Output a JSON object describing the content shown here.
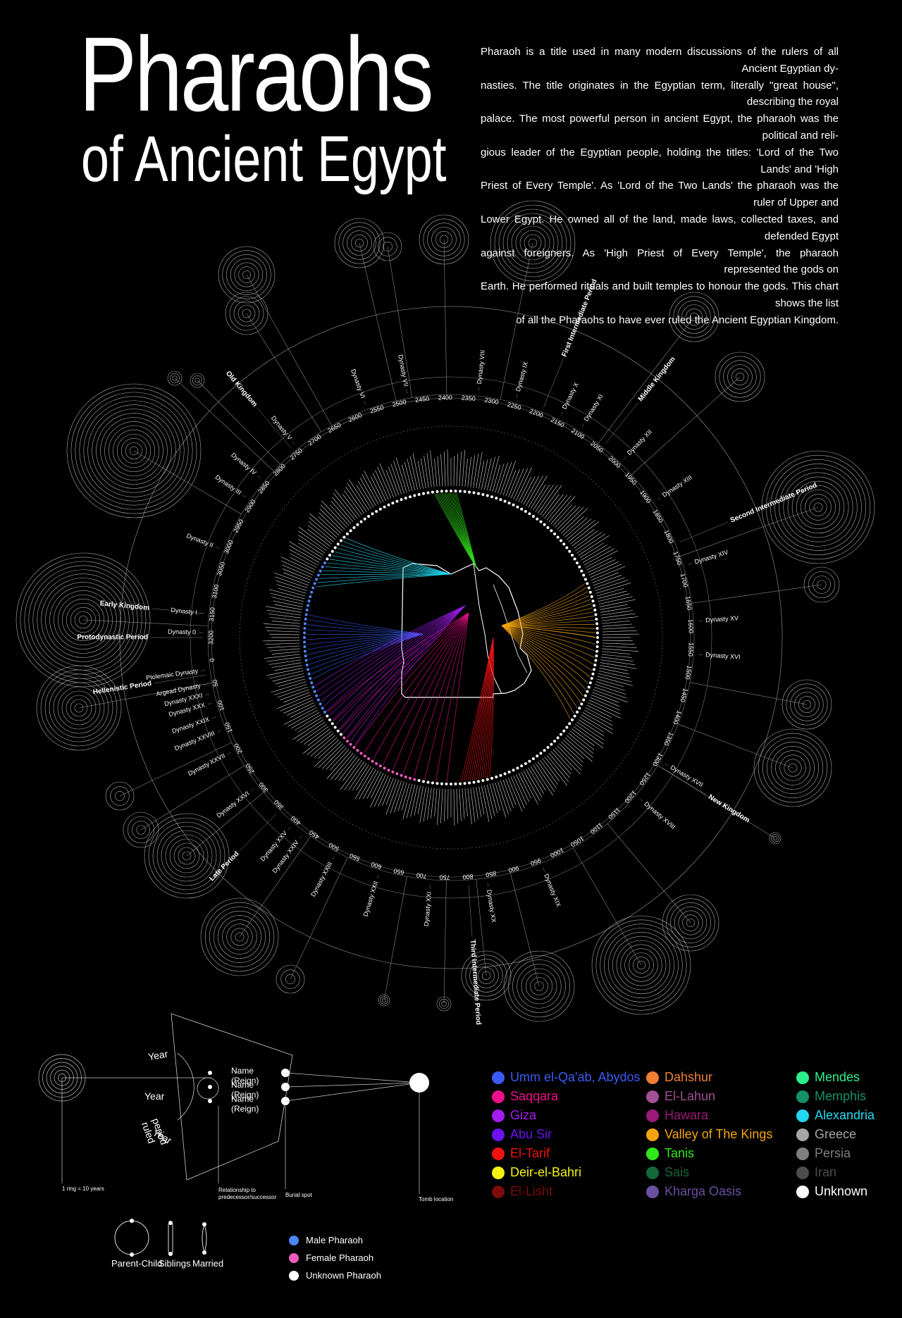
{
  "title": {
    "main": "Pharaohs",
    "sub": "of Ancient Egypt"
  },
  "intro_lines": [
    "Pharaoh is a title used in many modern discussions of the rulers of all Ancient Egyptian dy-",
    "nasties. The title originates in the Egyptian term, literally \"great house\", describing the royal",
    "palace. The most powerful person in ancient Egypt, the pharaoh was the political and reli-",
    "gious leader of the Egyptian people, holding the titles: 'Lord of the Two Lands' and 'High",
    "Priest of Every Temple'. As 'Lord of the Two Lands' the pharaoh was the ruler of Upper and",
    "Lower Egypt. He owned all of the land, made laws, collected taxes, and defended Egypt",
    "against foreigners. As 'High Priest of Every Temple', the pharaoh represented the gods on",
    "Earth. He performed rituals and built temples to honour the gods. This chart shows the list",
    "of all the Pharaohs to have ever ruled the Ancient Egyptian Kingdom."
  ],
  "periods": [
    {
      "label": "Protodynastic Period",
      "year": 3200
    },
    {
      "label": "Early Kingdom",
      "year": 3150
    },
    {
      "label": "Old Kingdom",
      "year": 2750
    },
    {
      "label": "First Intermediate Period",
      "year": 2190
    },
    {
      "label": "Middle Kingdom",
      "year": 2040
    },
    {
      "label": "Second Intermediate Period",
      "year": 1780
    },
    {
      "label": "New Kingdom",
      "year": 1290
    },
    {
      "label": "Third Intermediate Period",
      "year": 800
    },
    {
      "label": "Late Period",
      "year": 360
    },
    {
      "label": "Hellenistic Period",
      "year": 30
    }
  ],
  "dynasties": [
    {
      "label": "Dynasty 0",
      "year": 3190
    },
    {
      "label": "Dynasty I",
      "year": 3150
    },
    {
      "label": "Dynasty II",
      "year": 3010
    },
    {
      "label": "Dynasty III",
      "year": 2890
    },
    {
      "label": "Dynasty IV",
      "year": 2840
    },
    {
      "label": "Dynasty V",
      "year": 2740
    },
    {
      "label": "Dynasty VI",
      "year": 2570
    },
    {
      "label": "Dynasty VII",
      "year": 2480
    },
    {
      "label": "Dynasty VIII",
      "year": 2330
    },
    {
      "label": "Dynasty IX",
      "year": 2250
    },
    {
      "label": "Dynasty X",
      "year": 2150
    },
    {
      "label": "Dynasty XI",
      "year": 2100
    },
    {
      "label": "Dynasty XII",
      "year": 1990
    },
    {
      "label": "Dynasty XIII",
      "year": 1880
    },
    {
      "label": "Dynasty XIV",
      "year": 1730
    },
    {
      "label": "Dynasty XV",
      "year": 1610
    },
    {
      "label": "Dynasty XVI",
      "year": 1540
    },
    {
      "label": "Dynasty XVII",
      "year": 1300
    },
    {
      "label": "Dynasty XVIII",
      "year": 1210
    },
    {
      "label": "Dynasty XIX",
      "year": 960
    },
    {
      "label": "Dynasty XX",
      "year": 840
    },
    {
      "label": "Dynasty XXI",
      "year": 720
    },
    {
      "label": "Dynasty XXII",
      "year": 610
    },
    {
      "label": "Dynasty XXIII",
      "year": 510
    },
    {
      "label": "Dynasty XXIV",
      "year": 430
    },
    {
      "label": "Dynasty XXV",
      "year": 400
    },
    {
      "label": "Dynasty XXVI",
      "year": 290
    },
    {
      "label": "Dynasty XXVII",
      "year": 200
    },
    {
      "label": "Dynasty XXVIII",
      "year": 150
    },
    {
      "label": "Dynasty XXIX",
      "year": 120
    },
    {
      "label": "Dynasty XXX",
      "year": 90
    },
    {
      "label": "Dynasty XXXI",
      "year": 70
    },
    {
      "label": "Argead Dynasty",
      "year": 50
    },
    {
      "label": "Ptolemaic Dynasty",
      "year": 20
    }
  ],
  "year_ticks": [
    3200,
    3150,
    3100,
    3050,
    3000,
    2950,
    2900,
    2850,
    2800,
    2750,
    2700,
    2650,
    2600,
    2550,
    2500,
    2450,
    2400,
    2350,
    2300,
    2250,
    2200,
    2150,
    2100,
    2050,
    2000,
    1950,
    1900,
    1850,
    1800,
    1750,
    1700,
    1650,
    1600,
    1550,
    1500,
    1450,
    1400,
    1350,
    1300,
    1250,
    1200,
    1150,
    1100,
    1050,
    1000,
    950,
    900,
    850,
    800,
    750,
    700,
    650,
    600,
    550,
    500,
    450,
    400,
    350,
    300,
    250,
    200,
    150,
    100,
    50,
    0
  ],
  "key": {
    "year_labels": [
      "Year",
      "Year",
      "Year"
    ],
    "period_ruled": "period ruled",
    "name_labels": [
      "Name (Reign)",
      "Name (Reign)",
      "Name (Reign)"
    ],
    "ring_caption": "1 ring = 10 years",
    "relationship_caption": "Relationship to predecessor/successor",
    "burial_caption": "Burial spot",
    "tomb_caption": "Tomb location",
    "relations": [
      "Parent-Child",
      "Siblings",
      "Married"
    ]
  },
  "sex_legend": [
    {
      "label": "Male Pharaoh",
      "color": "#4f86f7"
    },
    {
      "label": "Female Pharaoh",
      "color": "#f05bbd"
    },
    {
      "label": "Unknown Pharaoh",
      "color": "#ffffff"
    }
  ],
  "tomb_legend": {
    "columns": [
      [
        {
          "label": "Umm el-Qa'ab, Abydos",
          "color": "#3a5cf5"
        },
        {
          "label": "Saqqara",
          "color": "#ee0f8c"
        },
        {
          "label": "Giza",
          "color": "#a31cf0"
        },
        {
          "label": "Abu Sir",
          "color": "#6a12f0"
        },
        {
          "label": "El-Tarif",
          "color": "#f21212"
        },
        {
          "label": "Deir-el-Bahri",
          "color": "#f4f20f"
        },
        {
          "label": "El-Lisht",
          "color": "#7a0c0c"
        }
      ],
      [
        {
          "label": "Dahshur",
          "color": "#f07e35"
        },
        {
          "label": "El-Lahun",
          "color": "#a05095"
        },
        {
          "label": "Hawara",
          "color": "#9b1a78"
        },
        {
          "label": "Valley of The Kings",
          "color": "#f5a40f"
        },
        {
          "label": "Tanis",
          "color": "#31e81a"
        },
        {
          "label": "Sais",
          "color": "#12683a"
        },
        {
          "label": "Kharga Oasis",
          "color": "#6b4fa0"
        }
      ],
      [
        {
          "label": "Mendes",
          "color": "#2cf08a"
        },
        {
          "label": "Memphis",
          "color": "#149168"
        },
        {
          "label": "Alexandria",
          "color": "#22d8f0"
        },
        {
          "label": "Greece",
          "color": "#a6a6a6"
        },
        {
          "label": "Persia",
          "color": "#7f7f7f"
        },
        {
          "label": "Iran",
          "color": "#4c4c4c"
        },
        {
          "label": "Unknown",
          "color": "#ffffff"
        }
      ]
    ]
  }
}
